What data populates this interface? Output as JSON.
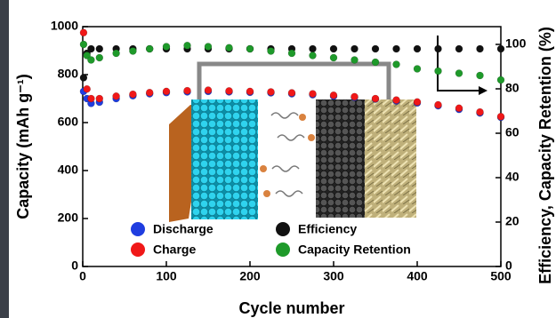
{
  "chart_data": {
    "type": "scatter",
    "x_label": "Cycle number",
    "y_label": "Capacity (mAh g⁻¹)",
    "y2_label": "Efficiency, Capacity Retention (%)",
    "x": [
      1,
      5,
      10,
      20,
      40,
      60,
      80,
      100,
      125,
      150,
      175,
      200,
      225,
      250,
      275,
      300,
      325,
      350,
      375,
      400,
      425,
      450,
      475,
      500
    ],
    "series": [
      {
        "name": "Discharge",
        "color": "#1f3de0",
        "values": [
          730,
          700,
          680,
          685,
          700,
          712,
          720,
          725,
          728,
          730,
          728,
          726,
          724,
          720,
          716,
          710,
          705,
          698,
          690,
          682,
          670,
          655,
          640,
          622
        ]
      },
      {
        "name": "Charge",
        "color": "#f01818",
        "values": [
          975,
          740,
          700,
          700,
          710,
          718,
          725,
          730,
          733,
          735,
          732,
          730,
          728,
          724,
          720,
          714,
          708,
          700,
          694,
          686,
          674,
          660,
          644,
          625
        ]
      },
      {
        "name": "Efficiency",
        "color": "#111111",
        "axis": "y2",
        "values": [
          85,
          96,
          98,
          98,
          98,
          98,
          98,
          98,
          98,
          98,
          98,
          98,
          98,
          98,
          98,
          98,
          98,
          98,
          98,
          98,
          98,
          98,
          98,
          98
        ]
      },
      {
        "name": "Capacity Retention",
        "color": "#1e9a2a",
        "axis": "y2",
        "values": [
          100,
          95,
          93,
          94,
          96,
          97,
          98,
          99,
          99.5,
          99,
          98.5,
          98,
          97,
          96,
          95,
          94,
          93,
          92,
          91,
          89,
          88,
          87,
          86,
          84
        ]
      }
    ],
    "xlim": [
      0,
      500
    ],
    "xticks": [
      0,
      100,
      200,
      300,
      400,
      500
    ],
    "ylim": [
      0,
      1000
    ],
    "yticks": [
      0,
      200,
      400,
      600,
      800,
      1000
    ],
    "y2lim": [
      0,
      108
    ],
    "y2ticks": [
      0,
      20,
      40,
      60,
      80,
      100
    ]
  }
}
